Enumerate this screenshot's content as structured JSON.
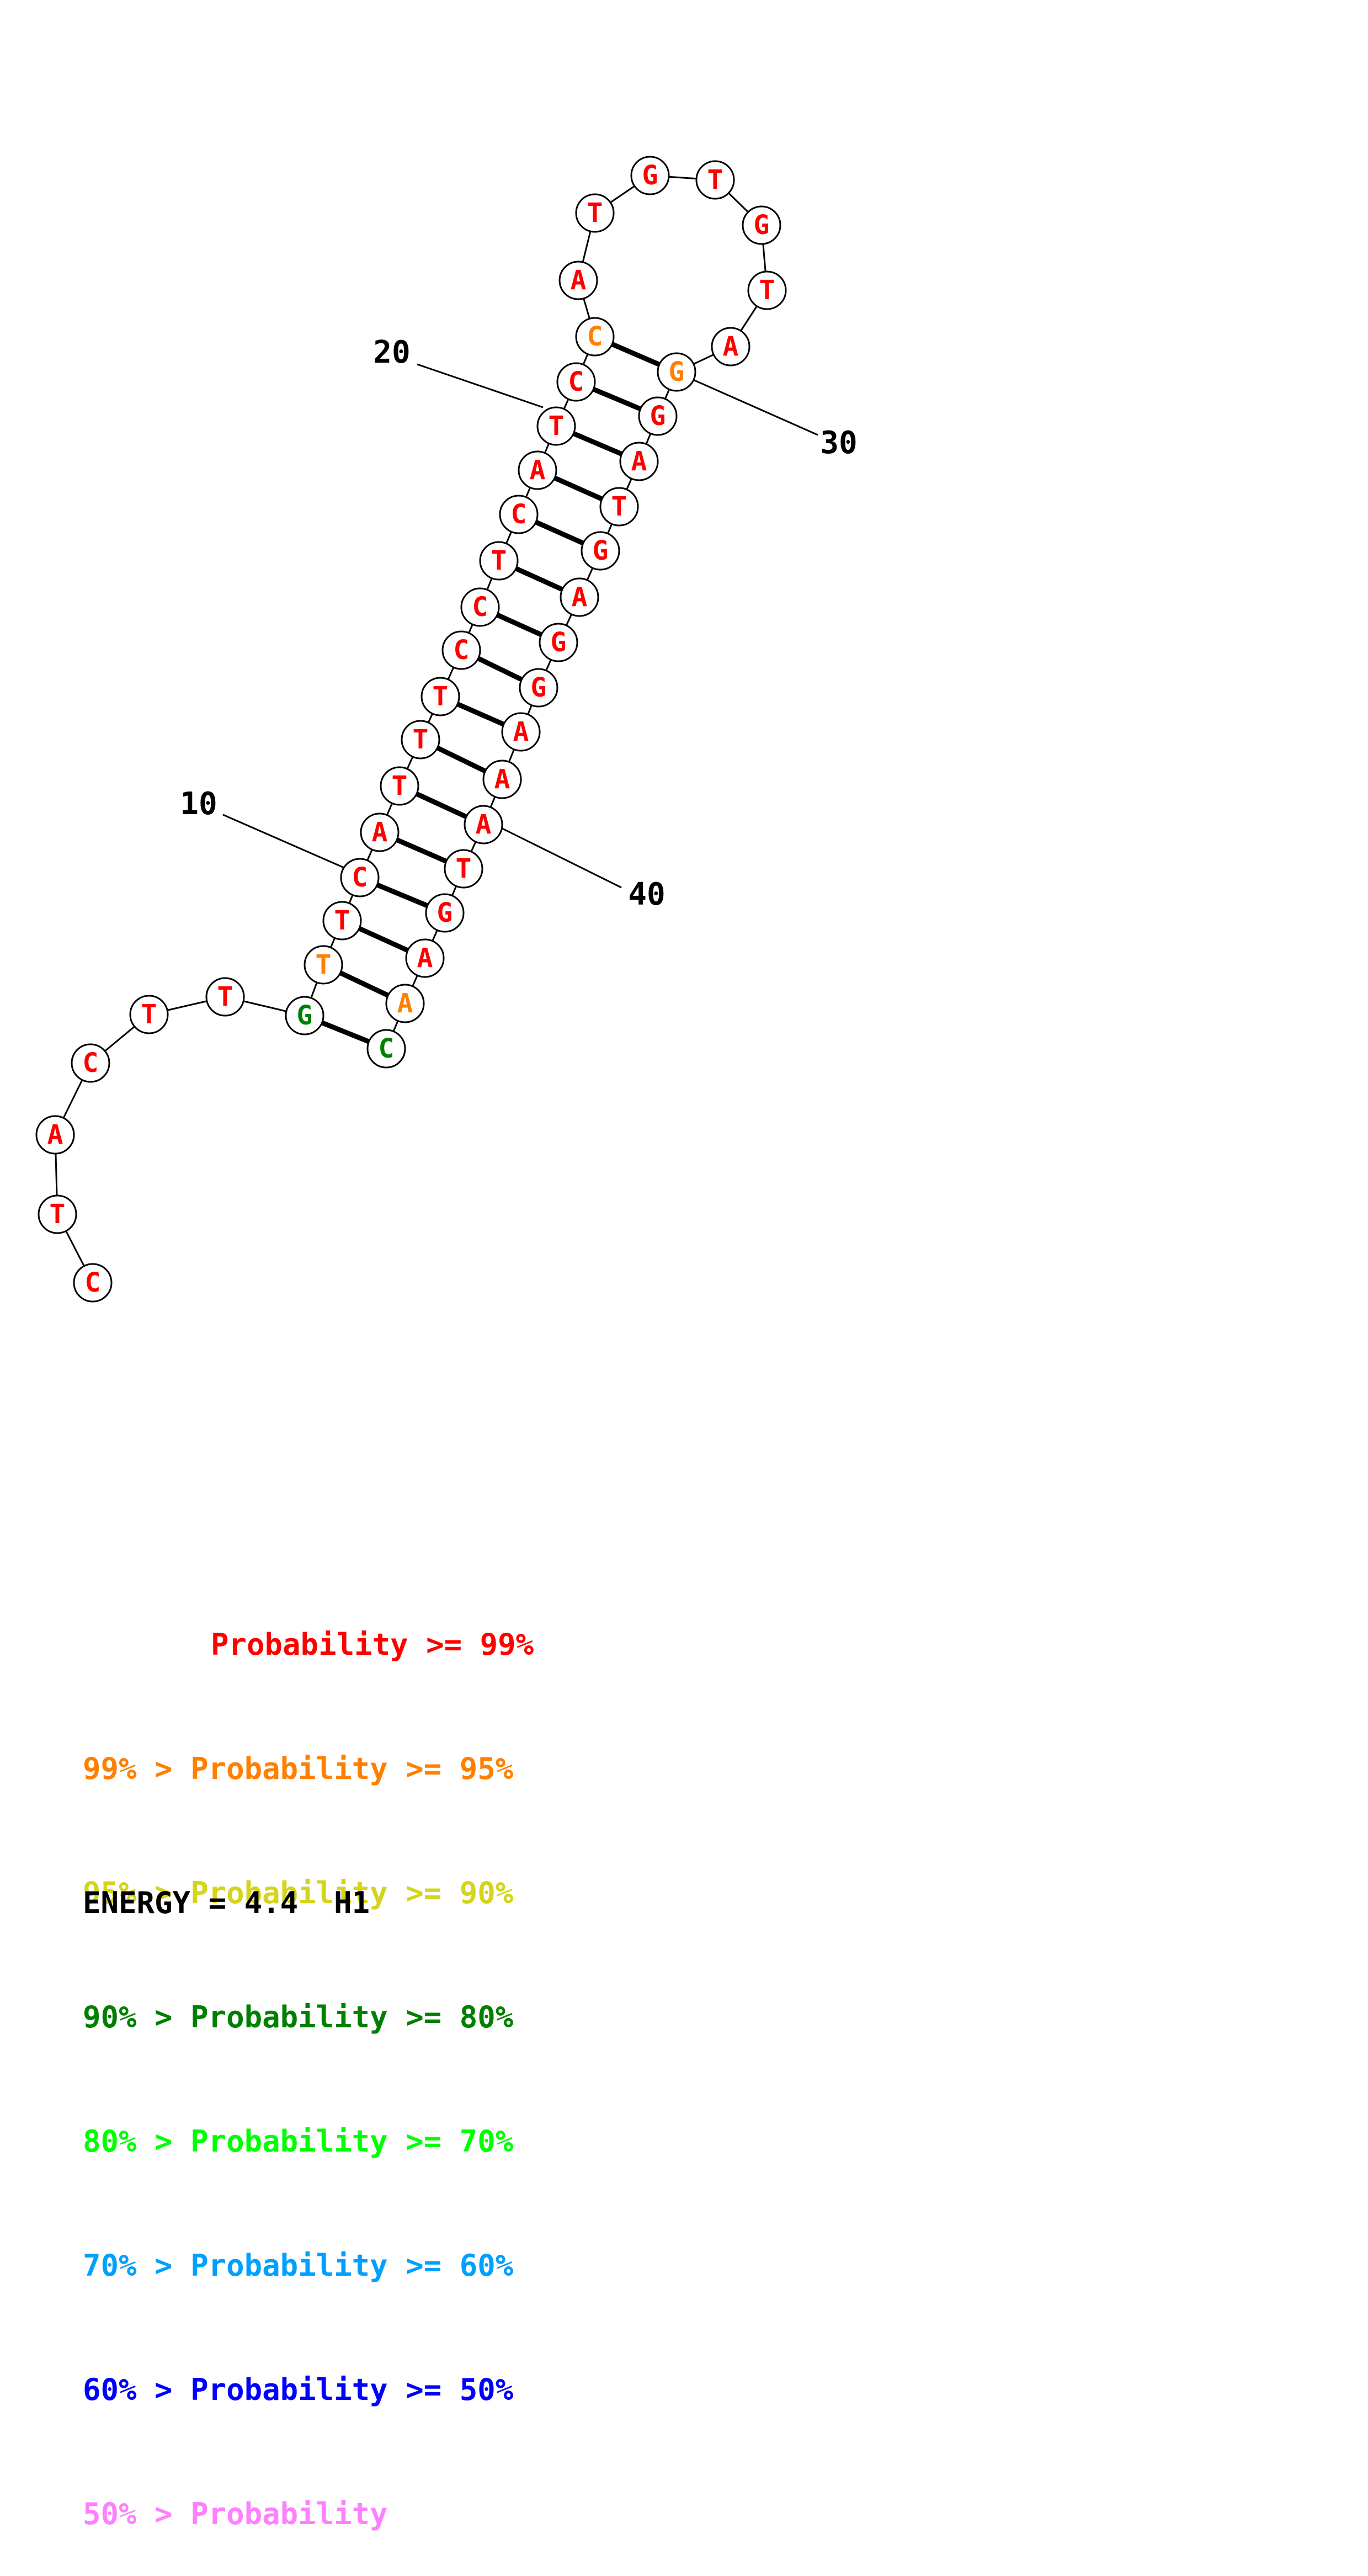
{
  "sequence": [
    "C",
    "T",
    "A",
    "C",
    "T",
    "T",
    "G",
    "T",
    "T",
    "C",
    "A",
    "T",
    "T",
    "T",
    "C",
    "C",
    "T",
    "C",
    "A",
    "T",
    "C",
    "C",
    "A",
    "T",
    "G",
    "T",
    "G",
    "T",
    "A",
    "G",
    "G",
    "A",
    "T",
    "G",
    "A",
    "G",
    "G",
    "A",
    "A",
    "A",
    "T",
    "G",
    "A",
    "A",
    "C"
  ],
  "prob_class": [
    0,
    0,
    0,
    0,
    0,
    0,
    3,
    1,
    0,
    0,
    0,
    0,
    0,
    0,
    0,
    0,
    0,
    0,
    0,
    0,
    0,
    1,
    0,
    0,
    0,
    0,
    0,
    0,
    0,
    1,
    0,
    0,
    0,
    0,
    0,
    0,
    0,
    0,
    0,
    0,
    0,
    0,
    0,
    1,
    3
  ],
  "pairs": [
    [
      7,
      45
    ],
    [
      8,
      44
    ],
    [
      9,
      43
    ],
    [
      10,
      42
    ],
    [
      11,
      41
    ],
    [
      12,
      40
    ],
    [
      13,
      39
    ],
    [
      14,
      38
    ],
    [
      15,
      37
    ],
    [
      16,
      36
    ],
    [
      17,
      35
    ],
    [
      18,
      34
    ],
    [
      19,
      33
    ],
    [
      20,
      32
    ],
    [
      21,
      31
    ],
    [
      22,
      30
    ]
  ],
  "position_labels": [
    {
      "index": 10,
      "text": "10"
    },
    {
      "index": 20,
      "text": "20"
    },
    {
      "index": 30,
      "text": "30"
    },
    {
      "index": 40,
      "text": "40"
    }
  ],
  "colors": {
    "c99": "#ff0000",
    "c95": "#ff8000",
    "c90": "#d4d41a",
    "c80": "#008000",
    "c70": "#00ff00",
    "c60": "#00a0ff",
    "c50": "#0000ff",
    "clow": "#ff80ff"
  },
  "legend": [
    {
      "prefix": "",
      "label": "Probability >= 99%",
      "color": "#ff0000"
    },
    {
      "prefix": "99% > ",
      "label": "Probability >= 95%",
      "color": "#ff8000"
    },
    {
      "prefix": "95% > ",
      "label": "Probability >= 90%",
      "color": "#d4d41a"
    },
    {
      "prefix": "90% > ",
      "label": "Probability >= 80%",
      "color": "#008000"
    },
    {
      "prefix": "80% > ",
      "label": "Probability >= 70%",
      "color": "#00ff00"
    },
    {
      "prefix": "70% > ",
      "label": "Probability >= 60%",
      "color": "#00a0ff"
    },
    {
      "prefix": "60% > ",
      "label": "Probability >= 50%",
      "color": "#0000ff"
    },
    {
      "prefix": "50% > ",
      "label": "Probability",
      "color": "#ff80ff"
    }
  ],
  "energy_text": "ENERGY = 4.4  H1"
}
